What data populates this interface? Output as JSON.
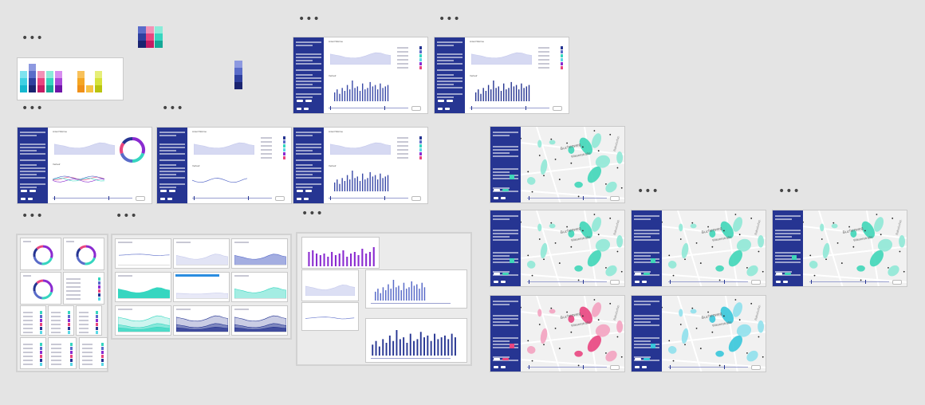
{
  "board": {
    "background": "#e4e4e4"
  },
  "palette": {
    "blue_dark": "#263592",
    "blue_mid": "#5a6cc9",
    "teal": "#36d6c0",
    "cyan": "#5ad8e6",
    "pink": "#e9457f",
    "purple": "#8a2bd0",
    "orange": "#f5a623",
    "lime": "#d6e23a",
    "lavender": "#c5c9ec",
    "map_land": "#f1f1f1"
  },
  "overflow_menu_icon": "more-horizontal-icon",
  "dashboard": {
    "title_text": "Verbrauch",
    "panel_titles": [
      "Anteil Wärme",
      "Verlauf"
    ],
    "map_labels": {
      "street_a": "Buchenweg",
      "street_b": "Wiesenstraße",
      "street_c": "Bahnhofstr."
    }
  },
  "map_variants": [
    "teal",
    "teal",
    "teal",
    "teal",
    "pink",
    "cyan"
  ],
  "bar_chart": {
    "type": "bar",
    "note": "",
    "values": [
      6,
      8,
      5,
      9,
      7,
      11,
      8,
      14,
      9,
      10,
      7,
      12,
      8,
      9,
      13,
      10,
      11,
      8,
      12,
      9,
      10,
      11,
      9,
      12,
      10
    ]
  }
}
